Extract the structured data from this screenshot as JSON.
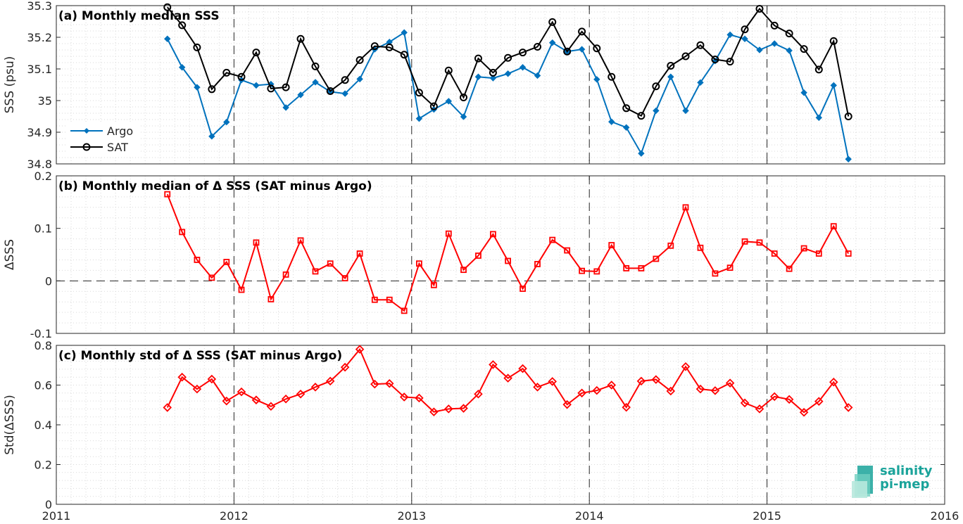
{
  "chart_data": [
    {
      "type": "line",
      "title": "(a) Monthly median SSS",
      "ylabel": "SSS (psu)",
      "ylim": [
        34.8,
        35.3
      ],
      "yticks": [
        "34.8",
        "34.9",
        "35",
        "35.1",
        "35.2",
        "35.3"
      ],
      "grid": true,
      "legend": "center-left",
      "series": [
        {
          "name": "Argo",
          "color": "#0072BD",
          "marker": "diamond-filled",
          "x": [
            2011.625,
            2011.708,
            2011.792,
            2011.875,
            2011.958,
            2012.042,
            2012.125,
            2012.208,
            2012.292,
            2012.375,
            2012.458,
            2012.542,
            2012.625,
            2012.708,
            2012.792,
            2012.875,
            2012.958,
            2013.042,
            2013.125,
            2013.208,
            2013.292,
            2013.375,
            2013.458,
            2013.542,
            2013.625,
            2013.708,
            2013.792,
            2013.875,
            2013.958,
            2014.042,
            2014.125,
            2014.208,
            2014.292,
            2014.375,
            2014.458,
            2014.542,
            2014.625,
            2014.708,
            2014.792,
            2014.875,
            2014.958,
            2015.042,
            2015.125,
            2015.208,
            2015.292,
            2015.375,
            2015.458
          ],
          "y": [
            35.195,
            35.105,
            35.042,
            34.887,
            34.932,
            35.065,
            35.048,
            35.052,
            34.978,
            35.018,
            35.058,
            35.028,
            35.022,
            35.068,
            35.162,
            35.185,
            35.215,
            34.943,
            34.972,
            34.998,
            34.949,
            35.075,
            35.071,
            35.085,
            35.105,
            35.079,
            35.183,
            35.155,
            35.162,
            35.067,
            34.933,
            34.915,
            34.833,
            34.968,
            35.075,
            34.968,
            35.057,
            35.125,
            35.208,
            35.195,
            35.16,
            35.18,
            35.158,
            35.025,
            34.946,
            35.048,
            34.815
          ]
        },
        {
          "name": "SAT",
          "color": "#000000",
          "marker": "circle-open",
          "x": [
            2011.625,
            2011.708,
            2011.792,
            2011.875,
            2011.958,
            2012.042,
            2012.125,
            2012.208,
            2012.292,
            2012.375,
            2012.458,
            2012.542,
            2012.625,
            2012.708,
            2012.792,
            2012.875,
            2012.958,
            2013.042,
            2013.125,
            2013.208,
            2013.292,
            2013.375,
            2013.458,
            2013.542,
            2013.625,
            2013.708,
            2013.792,
            2013.875,
            2013.958,
            2014.042,
            2014.125,
            2014.208,
            2014.292,
            2014.375,
            2014.458,
            2014.542,
            2014.625,
            2014.708,
            2014.792,
            2014.875,
            2014.958,
            2015.042,
            2015.125,
            2015.208,
            2015.292,
            2015.375,
            2015.458
          ],
          "y": [
            35.295,
            35.238,
            35.168,
            35.036,
            35.088,
            35.075,
            35.152,
            35.038,
            35.042,
            35.195,
            35.108,
            35.03,
            35.065,
            35.128,
            35.172,
            35.168,
            35.145,
            35.025,
            34.982,
            35.095,
            35.01,
            35.133,
            35.088,
            35.135,
            35.152,
            35.17,
            35.248,
            35.155,
            35.218,
            35.165,
            35.075,
            34.976,
            34.952,
            35.045,
            35.11,
            35.14,
            35.175,
            35.13,
            35.123,
            35.225,
            35.29,
            35.237,
            35.212,
            35.163,
            35.098,
            35.188,
            34.95
          ]
        }
      ]
    },
    {
      "type": "line",
      "title": "(b) Monthly median of Δ SSS (SAT minus Argo)",
      "ylabel": "ΔSSS",
      "ylim": [
        -0.1,
        0.2
      ],
      "yticks": [
        "-0.1",
        "0",
        "0.1",
        "0.2"
      ],
      "grid": true,
      "reference_line": 0,
      "series": [
        {
          "name": "",
          "color": "#FF0000",
          "marker": "square-open",
          "x": [
            2011.625,
            2011.708,
            2011.792,
            2011.875,
            2011.958,
            2012.042,
            2012.125,
            2012.208,
            2012.292,
            2012.375,
            2012.458,
            2012.542,
            2012.625,
            2012.708,
            2012.792,
            2012.875,
            2012.958,
            2013.042,
            2013.125,
            2013.208,
            2013.292,
            2013.375,
            2013.458,
            2013.542,
            2013.625,
            2013.708,
            2013.792,
            2013.875,
            2013.958,
            2014.042,
            2014.125,
            2014.208,
            2014.292,
            2014.375,
            2014.458,
            2014.542,
            2014.625,
            2014.708,
            2014.792,
            2014.875,
            2014.958,
            2015.042,
            2015.125,
            2015.208,
            2015.292,
            2015.375,
            2015.458
          ],
          "y": [
            0.165,
            0.093,
            0.04,
            0.006,
            0.036,
            -0.017,
            0.073,
            -0.035,
            0.012,
            0.077,
            0.018,
            0.033,
            0.005,
            0.052,
            -0.036,
            -0.036,
            -0.057,
            0.033,
            -0.008,
            0.09,
            0.021,
            0.048,
            0.089,
            0.038,
            -0.015,
            0.032,
            0.078,
            0.058,
            0.019,
            0.018,
            0.068,
            0.024,
            0.024,
            0.042,
            0.067,
            0.14,
            0.063,
            0.014,
            0.025,
            0.075,
            0.073,
            0.052,
            0.023,
            0.062,
            0.052,
            0.104,
            0.052
          ]
        }
      ]
    },
    {
      "type": "line",
      "title": "(c) Monthly std of Δ SSS (SAT minus Argo)",
      "ylabel": "Std(ΔSSS)",
      "ylim": [
        0,
        0.8
      ],
      "yticks": [
        "0",
        "0.2",
        "0.4",
        "0.6",
        "0.8"
      ],
      "xlim": [
        2011,
        2016
      ],
      "xticks": [
        "2011",
        "2012",
        "2013",
        "2014",
        "2015",
        "2016"
      ],
      "grid": true,
      "series": [
        {
          "name": "",
          "color": "#FF0000",
          "marker": "diamond-open",
          "x": [
            2011.625,
            2011.708,
            2011.792,
            2011.875,
            2011.958,
            2012.042,
            2012.125,
            2012.208,
            2012.292,
            2012.375,
            2012.458,
            2012.542,
            2012.625,
            2012.708,
            2012.792,
            2012.875,
            2012.958,
            2013.042,
            2013.125,
            2013.208,
            2013.292,
            2013.375,
            2013.458,
            2013.542,
            2013.625,
            2013.708,
            2013.792,
            2013.875,
            2013.958,
            2014.042,
            2014.125,
            2014.208,
            2014.292,
            2014.375,
            2014.458,
            2014.542,
            2014.625,
            2014.708,
            2014.792,
            2014.875,
            2014.958,
            2015.042,
            2015.125,
            2015.208,
            2015.292,
            2015.375,
            2015.458
          ],
          "y": [
            0.487,
            0.64,
            0.58,
            0.63,
            0.52,
            0.566,
            0.525,
            0.493,
            0.53,
            0.555,
            0.59,
            0.62,
            0.69,
            0.78,
            0.605,
            0.608,
            0.54,
            0.535,
            0.465,
            0.48,
            0.483,
            0.555,
            0.703,
            0.635,
            0.683,
            0.59,
            0.618,
            0.502,
            0.56,
            0.573,
            0.6,
            0.488,
            0.62,
            0.628,
            0.57,
            0.693,
            0.58,
            0.572,
            0.61,
            0.51,
            0.48,
            0.542,
            0.528,
            0.463,
            0.518,
            0.615,
            0.487
          ]
        }
      ]
    }
  ],
  "logo": {
    "line1": "salinity",
    "line2": "pi-mep"
  }
}
